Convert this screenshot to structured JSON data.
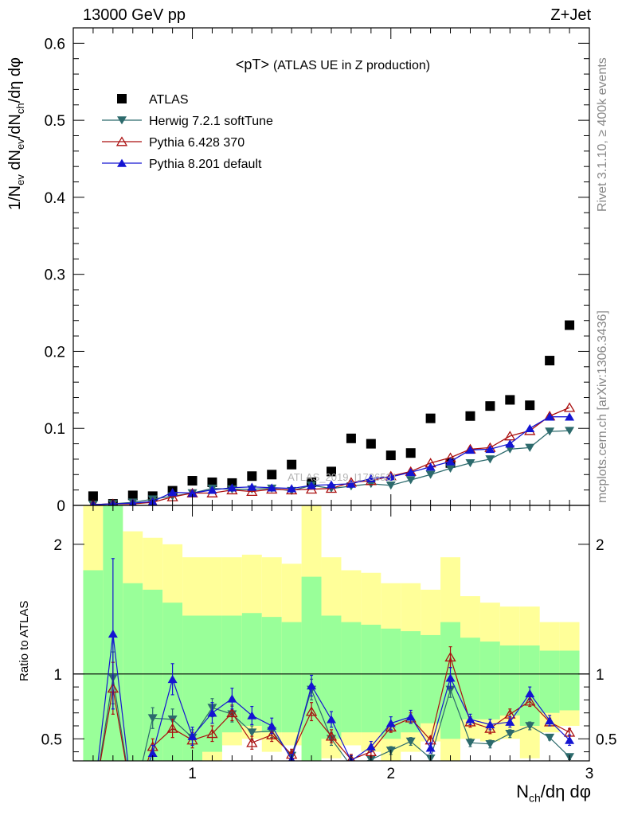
{
  "header": {
    "left": "13000 GeV pp",
    "right": "Z+Jet"
  },
  "side": {
    "rivet": "Rivet 3.1.10, ≥ 400k events",
    "source": "mcplots.cern.ch [arXiv:1306.3436]"
  },
  "watermark": "ATLAS_2019_I1736531",
  "main_ylabel": {
    "base": "1/N",
    "s1": "ev",
    "m1": " dN",
    "s2": "ev",
    "m2": "/dN",
    "s3": "ch",
    "m3": "/dη dφ"
  },
  "ratio_ylabel": "Ratio to ATLAS",
  "xlabel": {
    "n": "N",
    "sub": "ch",
    "rest": "/dη dφ"
  },
  "chart_data": [
    {
      "type": "scatter",
      "title": "<pT>",
      "subtitle": "(ATLAS UE in Z production)",
      "xlim": [
        0.4,
        3.0
      ],
      "ylim": [
        0,
        0.62
      ],
      "xticks": [
        1,
        2,
        3
      ],
      "xtick_labels": [
        "1",
        "2",
        "3"
      ],
      "yticks": [
        0,
        0.1,
        0.2,
        0.3,
        0.4,
        0.5,
        0.6
      ],
      "ytick_labels": [
        "0",
        "0.1",
        "0.2",
        "0.3",
        "0.4",
        "0.5",
        "0.6"
      ],
      "legend_position": "top-left",
      "x": [
        0.5,
        0.6,
        0.7,
        0.8,
        0.9,
        1.0,
        1.1,
        1.2,
        1.3,
        1.4,
        1.5,
        1.6,
        1.7,
        1.8,
        1.9,
        2.0,
        2.1,
        2.2,
        2.3,
        2.4,
        2.5,
        2.6,
        2.7,
        2.8,
        2.9
      ],
      "series": [
        {
          "name": "ATLAS",
          "color": "#000000",
          "marker": "square",
          "line": false,
          "values": [
            0.012,
            0.002,
            0.013,
            0.012,
            0.019,
            0.032,
            0.03,
            0.029,
            0.038,
            0.04,
            0.053,
            0.03,
            0.044,
            0.087,
            0.08,
            0.065,
            0.068,
            0.113,
            0.055,
            0.116,
            0.129,
            0.137,
            0.13,
            0.188,
            0.234
          ]
        },
        {
          "name": "Herwig 7.2.1 softTune",
          "color": "#2c6a6c",
          "marker": "triangle-down",
          "line": true,
          "values": [
            0.001,
            0.002,
            0.004,
            0.008,
            0.012,
            0.016,
            0.022,
            0.021,
            0.021,
            0.022,
            0.019,
            0.026,
            0.022,
            0.025,
            0.028,
            0.026,
            0.033,
            0.04,
            0.048,
            0.055,
            0.06,
            0.073,
            0.075,
            0.096,
            0.097
          ]
        },
        {
          "name": "Pythia 6.428 370",
          "color": "#aa0f0f",
          "marker": "triangle-up-open",
          "line": true,
          "values": [
            0.001,
            0.002,
            0.002,
            0.004,
            0.011,
            0.016,
            0.016,
            0.02,
            0.018,
            0.021,
            0.02,
            0.021,
            0.022,
            0.03,
            0.032,
            0.038,
            0.044,
            0.055,
            0.062,
            0.073,
            0.075,
            0.09,
            0.097,
            0.116,
            0.127
          ]
        },
        {
          "name": "Pythia 8.201 default",
          "color": "#1414d2",
          "marker": "triangle-up",
          "line": true,
          "values": [
            0.001,
            0.002,
            0.003,
            0.005,
            0.017,
            0.016,
            0.02,
            0.023,
            0.024,
            0.023,
            0.022,
            0.026,
            0.027,
            0.028,
            0.035,
            0.037,
            0.043,
            0.05,
            0.057,
            0.072,
            0.073,
            0.08,
            0.1,
            0.115,
            0.115
          ]
        }
      ]
    },
    {
      "type": "line",
      "ylabel": "Ratio to ATLAS",
      "xlim": [
        0.4,
        3.0
      ],
      "ylim": [
        0.33,
        2.3
      ],
      "yticks": [
        0.5,
        1,
        2
      ],
      "ytick_labels": [
        "0.5",
        "1",
        "2"
      ],
      "reference_line": 1,
      "band_outer_color": "#ffff99",
      "band_inner_color": "#99ff99",
      "band_outer": [
        [
          0.33,
          2.3
        ],
        [
          0.33,
          2.3
        ],
        [
          0.33,
          2.1
        ],
        [
          0.33,
          2.05
        ],
        [
          0.33,
          2.0
        ],
        [
          0.33,
          1.9
        ],
        [
          0.33,
          1.9
        ],
        [
          0.45,
          1.9
        ],
        [
          0.5,
          1.92
        ],
        [
          0.4,
          1.9
        ],
        [
          0.45,
          1.85
        ],
        [
          0.33,
          2.3
        ],
        [
          0.35,
          1.9
        ],
        [
          0.45,
          1.8
        ],
        [
          0.4,
          1.78
        ],
        [
          0.33,
          1.7
        ],
        [
          0.4,
          1.7
        ],
        [
          0.48,
          1.65
        ],
        [
          0.33,
          1.9
        ],
        [
          0.5,
          1.6
        ],
        [
          0.48,
          1.55
        ],
        [
          0.5,
          1.52
        ],
        [
          0.35,
          1.52
        ],
        [
          0.55,
          1.4
        ],
        [
          0.6,
          1.4
        ]
      ],
      "band_inner": [
        [
          0.33,
          1.8
        ],
        [
          0.33,
          2.3
        ],
        [
          0.33,
          1.7
        ],
        [
          0.33,
          1.65
        ],
        [
          0.33,
          1.55
        ],
        [
          0.33,
          1.45
        ],
        [
          0.4,
          1.45
        ],
        [
          0.55,
          1.45
        ],
        [
          0.6,
          1.47
        ],
        [
          0.55,
          1.44
        ],
        [
          0.55,
          1.4
        ],
        [
          0.33,
          1.75
        ],
        [
          0.5,
          1.45
        ],
        [
          0.55,
          1.4
        ],
        [
          0.55,
          1.38
        ],
        [
          0.5,
          1.35
        ],
        [
          0.55,
          1.33
        ],
        [
          0.62,
          1.3
        ],
        [
          0.5,
          1.4
        ],
        [
          0.65,
          1.28
        ],
        [
          0.65,
          1.25
        ],
        [
          0.68,
          1.22
        ],
        [
          0.6,
          1.22
        ],
        [
          0.7,
          1.18
        ],
        [
          0.72,
          1.18
        ]
      ],
      "series": [
        {
          "name": "Herwig 7.2.1 softTune",
          "values": [
            null,
            0.97,
            null,
            0.66,
            0.65,
            0.51,
            0.74,
            0.69,
            0.55,
            0.56,
            0.37,
            0.88,
            0.5,
            0.29,
            0.34,
            0.41,
            0.48,
            0.35,
            0.88,
            0.47,
            0.46,
            0.54,
            0.6,
            0.51,
            0.36
          ],
          "errors": [
            0,
            0.2,
            0,
            0.08,
            0.08,
            0.06,
            0.07,
            0.06,
            0.05,
            0.05,
            0.04,
            0.08,
            0.05,
            0.03,
            0.03,
            0.03,
            0.03,
            0.02,
            0.06,
            0.03,
            0.03,
            0.03,
            0.03,
            0.02,
            0.02
          ]
        },
        {
          "name": "Pythia 6.428 370",
          "values": [
            null,
            0.89,
            null,
            0.44,
            0.58,
            0.49,
            0.54,
            0.7,
            0.47,
            0.53,
            0.38,
            0.71,
            0.52,
            0.34,
            0.4,
            0.59,
            0.66,
            0.49,
            1.13,
            0.63,
            0.58,
            0.69,
            0.79,
            0.63,
            0.55
          ],
          "errors": [
            0,
            0.2,
            0,
            0.06,
            0.07,
            0.06,
            0.06,
            0.06,
            0.05,
            0.05,
            0.04,
            0.07,
            0.05,
            0.04,
            0.04,
            0.04,
            0.04,
            0.03,
            0.08,
            0.04,
            0.04,
            0.04,
            0.04,
            0.03,
            0.03
          ]
        },
        {
          "name": "Pythia 8.201 default",
          "values": [
            null,
            1.31,
            null,
            0.39,
            0.96,
            0.52,
            0.7,
            0.81,
            0.68,
            0.6,
            0.34,
            0.91,
            0.65,
            0.33,
            0.44,
            0.62,
            0.67,
            0.43,
            0.97,
            0.65,
            0.61,
            0.63,
            0.85,
            0.64,
            0.49
          ],
          "errors": [
            0,
            0.58,
            0,
            0.06,
            0.12,
            0.07,
            0.08,
            0.08,
            0.07,
            0.06,
            0.04,
            0.08,
            0.06,
            0.04,
            0.04,
            0.05,
            0.05,
            0.04,
            0.08,
            0.04,
            0.04,
            0.04,
            0.05,
            0.04,
            0.04
          ]
        }
      ]
    }
  ]
}
